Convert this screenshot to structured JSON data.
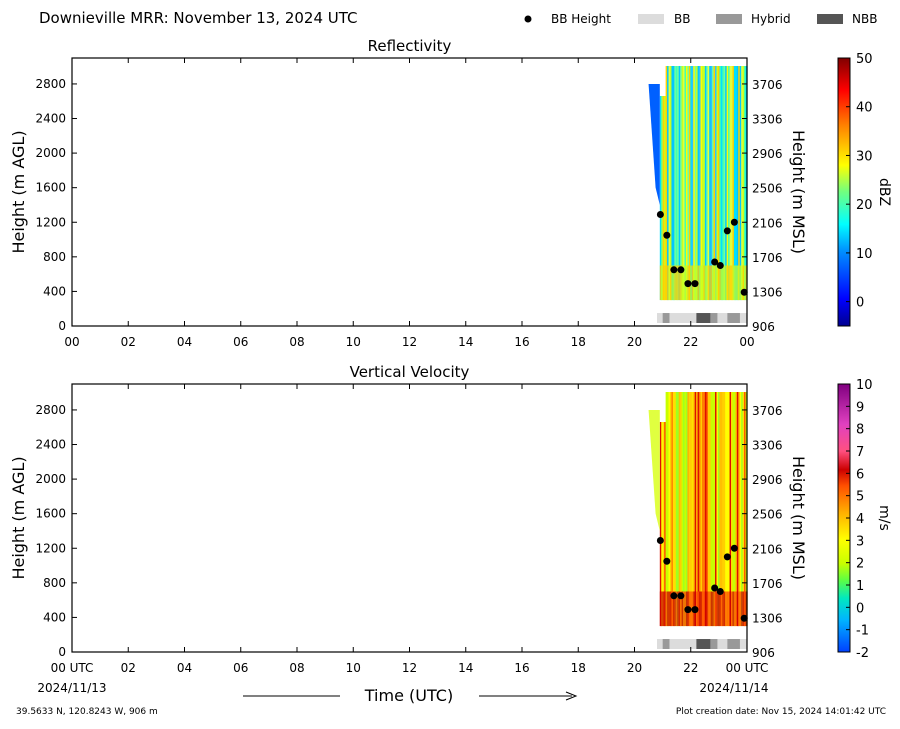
{
  "header": {
    "title": "Downieville MRR:  November 13, 2024 UTC",
    "legend": [
      {
        "label": "BB Height",
        "color": "#000000",
        "kind": "dot"
      },
      {
        "label": "BB",
        "color": "#dcdcdc",
        "kind": "rect"
      },
      {
        "label": "Hybrid",
        "color": "#999999",
        "kind": "rect"
      },
      {
        "label": "NBB",
        "color": "#555555",
        "kind": "rect"
      }
    ]
  },
  "chart_data": [
    {
      "type": "heatmap",
      "title": "Reflectivity",
      "ylabel": "Height (m AGL)",
      "y2label": "Height (m MSL)",
      "ylim": [
        0,
        3100
      ],
      "yticks": [
        "0",
        "400",
        "800",
        "1200",
        "1600",
        "2000",
        "2400",
        "2800"
      ],
      "y2ticks": [
        "906",
        "1306",
        "1706",
        "2106",
        "2506",
        "2906",
        "3306",
        "3706"
      ],
      "xlim": [
        0,
        24
      ],
      "xticks": [
        "00",
        "02",
        "04",
        "06",
        "08",
        "10",
        "12",
        "14",
        "16",
        "18",
        "20",
        "22",
        "00"
      ],
      "colorbar": {
        "label": "dBZ",
        "min": -5,
        "max": 50,
        "ticks": [
          "0",
          "10",
          "20",
          "30",
          "40",
          "50"
        ]
      },
      "data_start_hour": 20.9,
      "bb_height_points": [
        {
          "x": 20.92,
          "y": 1290
        },
        {
          "x": 21.15,
          "y": 1050
        },
        {
          "x": 21.4,
          "y": 650
        },
        {
          "x": 21.65,
          "y": 650
        },
        {
          "x": 21.9,
          "y": 490
        },
        {
          "x": 22.15,
          "y": 490
        },
        {
          "x": 22.85,
          "y": 740
        },
        {
          "x": 23.05,
          "y": 700
        },
        {
          "x": 23.3,
          "y": 1100
        },
        {
          "x": 23.55,
          "y": 1200
        },
        {
          "x": 23.9,
          "y": 390
        }
      ]
    },
    {
      "type": "heatmap",
      "title": "Vertical Velocity",
      "ylabel": "Height (m AGL)",
      "y2label": "Height (m MSL)",
      "xlabel": "Time (UTC)",
      "ylim": [
        0,
        3100
      ],
      "yticks": [
        "0",
        "400",
        "800",
        "1200",
        "1600",
        "2000",
        "2400",
        "2800"
      ],
      "y2ticks": [
        "906",
        "1306",
        "1706",
        "2106",
        "2506",
        "2906",
        "3306",
        "3706"
      ],
      "xlim": [
        0,
        24
      ],
      "xticks": [
        "00 UTC",
        "02",
        "04",
        "06",
        "08",
        "10",
        "12",
        "14",
        "16",
        "18",
        "20",
        "22",
        "00 UTC"
      ],
      "colorbar": {
        "label": "m/s",
        "min": -2,
        "max": 10,
        "ticks": [
          "-2",
          "-1",
          "0",
          "1",
          "2",
          "3",
          "4",
          "5",
          "6",
          "7",
          "8",
          "9",
          "10"
        ]
      },
      "data_start_hour": 20.9,
      "bb_height_points": [
        {
          "x": 20.92,
          "y": 1290
        },
        {
          "x": 21.15,
          "y": 1050
        },
        {
          "x": 21.4,
          "y": 650
        },
        {
          "x": 21.65,
          "y": 650
        },
        {
          "x": 21.9,
          "y": 490
        },
        {
          "x": 22.15,
          "y": 490
        },
        {
          "x": 22.85,
          "y": 740
        },
        {
          "x": 23.05,
          "y": 700
        },
        {
          "x": 23.3,
          "y": 1100
        },
        {
          "x": 23.55,
          "y": 1200
        },
        {
          "x": 23.9,
          "y": 390
        }
      ]
    }
  ],
  "bb_status_bar": [
    {
      "from": 20.8,
      "to": 21.0,
      "type": "BB"
    },
    {
      "from": 21.0,
      "to": 21.25,
      "type": "Hybrid"
    },
    {
      "from": 21.25,
      "to": 22.2,
      "type": "BB"
    },
    {
      "from": 22.2,
      "to": 22.7,
      "type": "NBB"
    },
    {
      "from": 22.7,
      "to": 22.95,
      "type": "Hybrid"
    },
    {
      "from": 22.95,
      "to": 23.3,
      "type": "BB"
    },
    {
      "from": 23.3,
      "to": 23.75,
      "type": "Hybrid"
    },
    {
      "from": 23.75,
      "to": 24.0,
      "type": "BB"
    }
  ],
  "footer": {
    "start_date": "2024/11/13",
    "end_date": "2024/11/14",
    "location": "39.5633 N, 120.8243 W, 906 m",
    "creation": "Plot creation date: Nov 15, 2024 14:01:42 UTC"
  }
}
